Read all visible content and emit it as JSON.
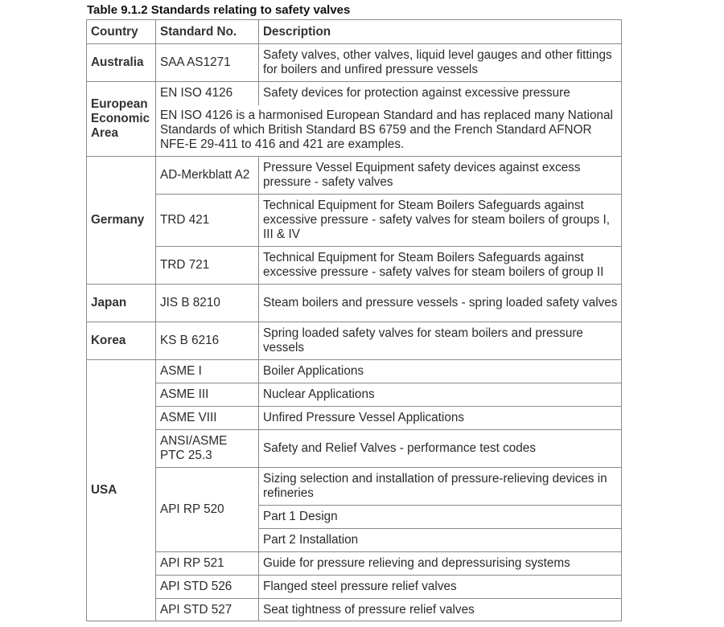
{
  "title": "Table 9.1.2  Standards relating to safety valves",
  "headers": [
    "Country",
    "Standard No.",
    "Description"
  ],
  "australia": {
    "country": "Australia",
    "std": "SAA AS1271",
    "desc": "Safety valves, other valves, liquid level gauges and other fittings for boilers and unfired pressure vessels"
  },
  "eea": {
    "country": "European Economic Area",
    "std": "EN ISO 4126",
    "desc": "Safety devices for protection against excessive pressure",
    "note": "EN ISO 4126 is a harmonised European Standard and has replaced many National Standards of which British Standard BS 6759 and the French Standard AFNOR NFE-E 29-411 to 416 and 421 are examples."
  },
  "germany": {
    "country": "Germany",
    "rows": [
      {
        "std": "AD-Merkblatt A2",
        "desc": "Pressure Vessel Equipment safety devices against excess pressure - safety valves"
      },
      {
        "std": "TRD 421",
        "desc": "Technical Equipment for Steam Boilers Safeguards against excessive  pressure - safety valves for steam boilers of groups I, III & IV"
      },
      {
        "std": "TRD 721",
        "desc": "Technical Equipment for Steam Boilers Safeguards against excessive  pressure - safety valves for steam boilers of group II"
      }
    ]
  },
  "japan": {
    "country": "Japan",
    "std": "JIS B 8210",
    "desc": "Steam boilers and pressure vessels - spring loaded safety valves"
  },
  "korea": {
    "country": "Korea",
    "std": "KS B 6216",
    "desc": "Spring loaded safety valves for steam boilers and pressure vessels"
  },
  "usa": {
    "country": "USA",
    "rows": [
      {
        "std": "ASME I",
        "desc": "Boiler Applications"
      },
      {
        "std": "ASME III",
        "desc": "Nuclear Applications"
      },
      {
        "std": "ASME VIII",
        "desc": "Unfired Pressure Vessel Applications"
      },
      {
        "std": "ANSI/ASME PTC 25.3",
        "desc": "Safety and Relief Valves - performance test codes"
      },
      {
        "std": "API RP 520",
        "desc": "Sizing selection and installation of pressure-relieving devices in refineries",
        "parts": [
          "Part 1 Design",
          "Part 2 Installation"
        ]
      },
      {
        "std": "API RP 521",
        "desc": "Guide for pressure relieving and depressurising systems"
      },
      {
        "std": "API STD 526",
        "desc": "Flanged steel pressure relief valves"
      },
      {
        "std": "API STD 527",
        "desc": "Seat tightness of pressure relief valves"
      }
    ]
  }
}
